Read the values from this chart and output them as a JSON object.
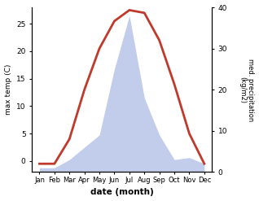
{
  "months": [
    "Jan",
    "Feb",
    "Mar",
    "Apr",
    "May",
    "Jun",
    "Jul",
    "Aug",
    "Sep",
    "Oct",
    "Nov",
    "Dec"
  ],
  "max_temp": [
    -0.5,
    -0.5,
    4.0,
    13.0,
    20.5,
    25.5,
    27.5,
    27.0,
    22.0,
    14.0,
    5.0,
    -0.5
  ],
  "precipitation": [
    1.0,
    1.0,
    3.0,
    6.0,
    9.0,
    25.0,
    38.0,
    18.0,
    9.0,
    3.0,
    3.5,
    2.0
  ],
  "temp_color": "#c0392b",
  "precip_color_fill": "#b8c4e8",
  "temp_ylim": [
    -2,
    28
  ],
  "precip_ylim": [
    0,
    40
  ],
  "xlabel": "date (month)",
  "ylabel_left": "max temp (C)",
  "ylabel_right": "med. precipitation\n(kg/m2)",
  "temp_yticks": [
    0,
    5,
    10,
    15,
    20,
    25
  ],
  "precip_yticks": [
    0,
    10,
    20,
    30,
    40
  ],
  "fig_width": 3.18,
  "fig_height": 2.47,
  "dpi": 100
}
